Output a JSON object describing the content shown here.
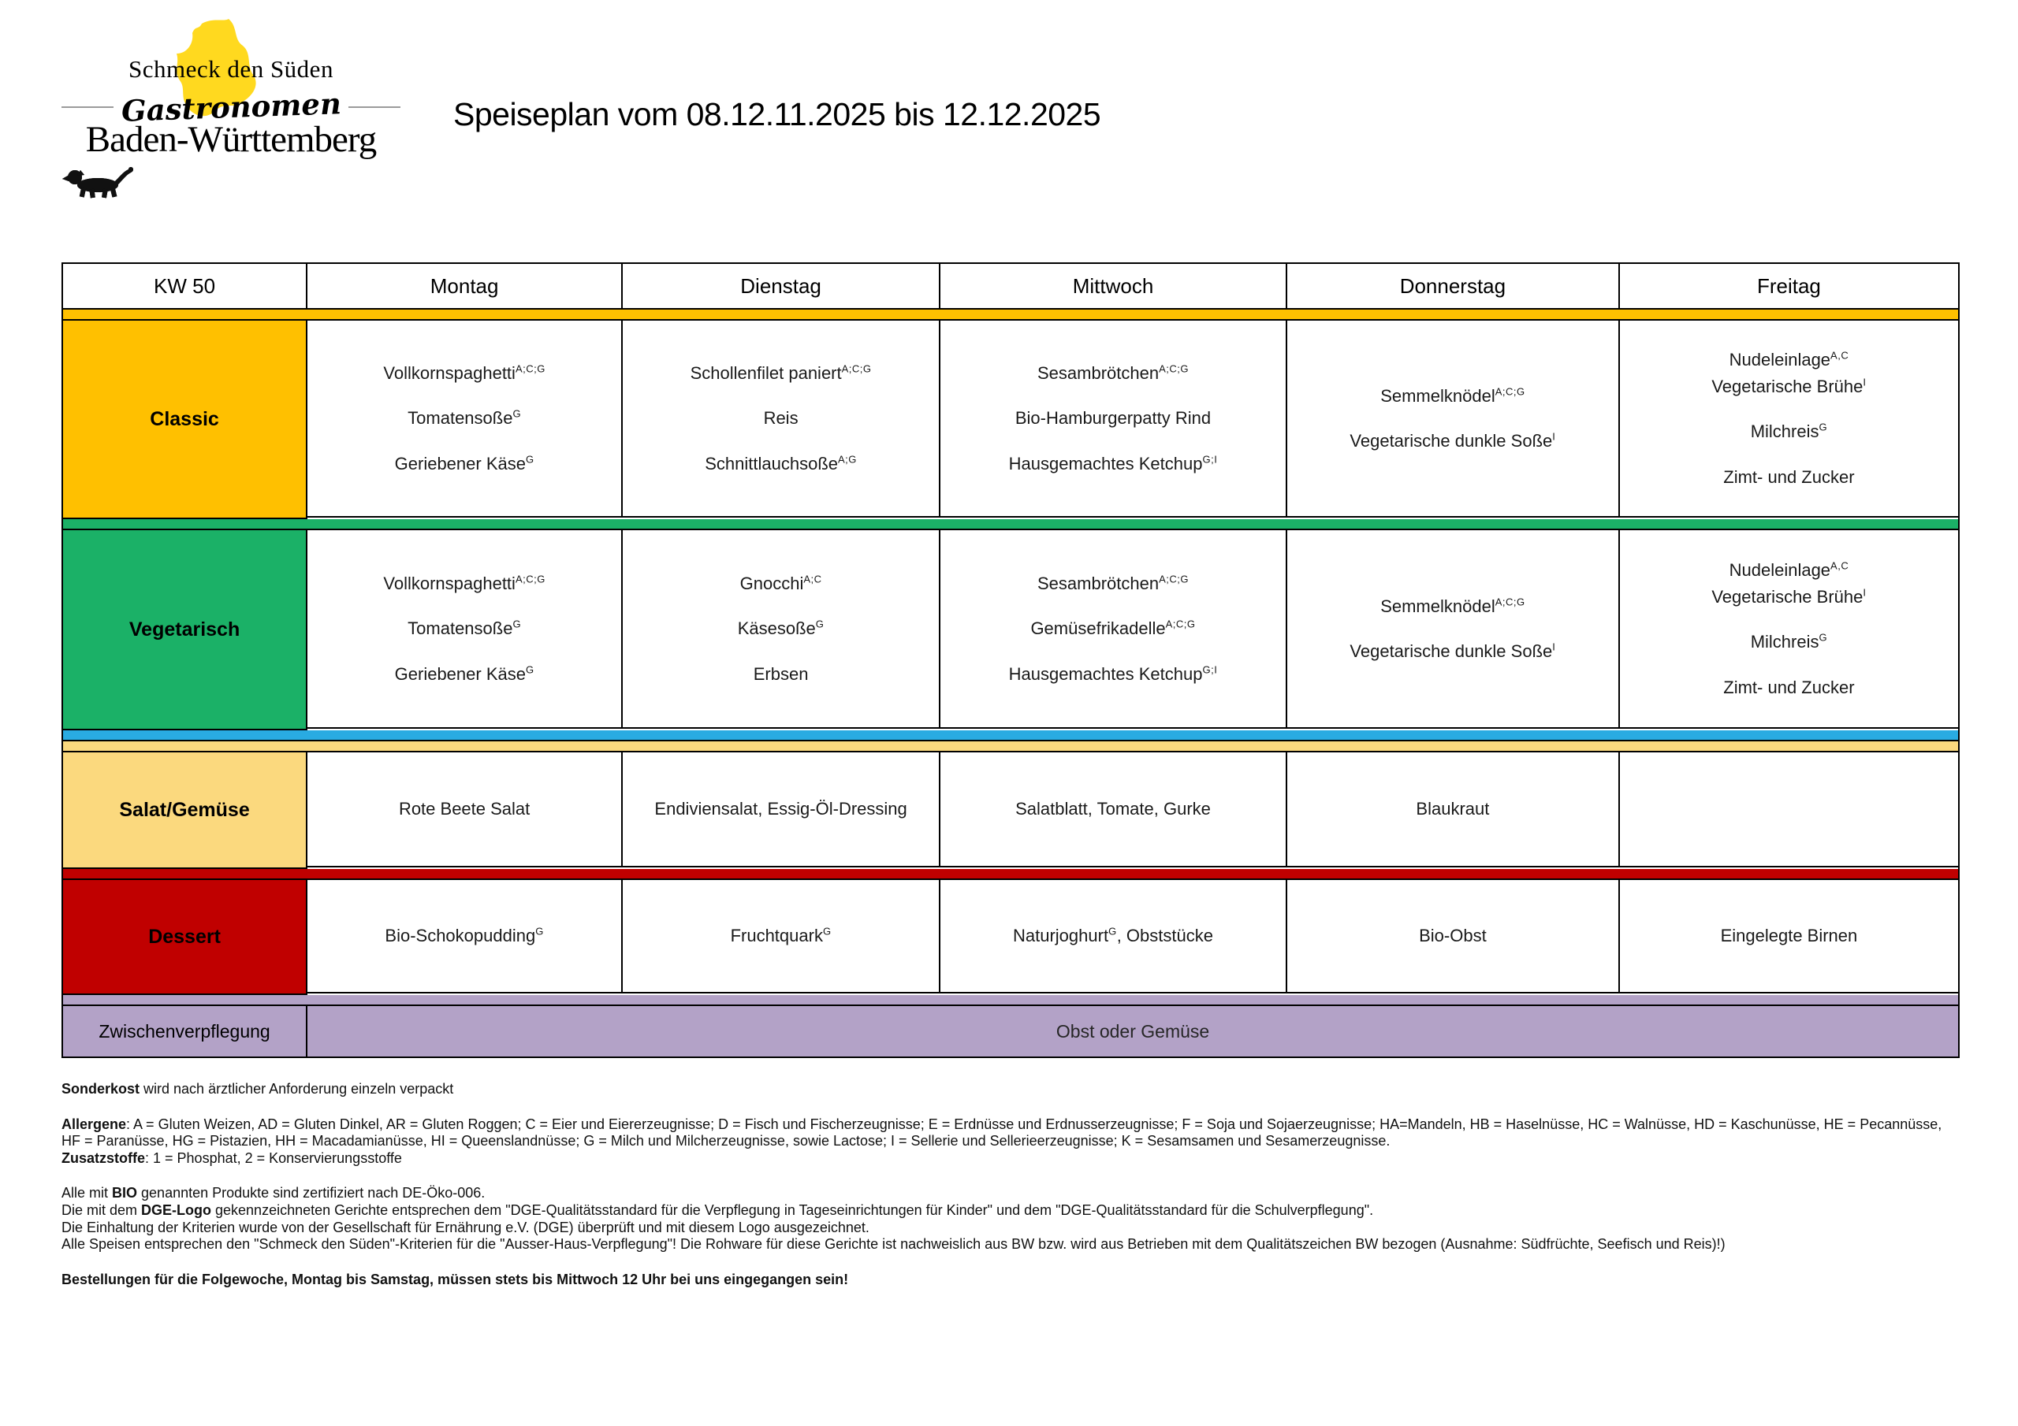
{
  "logo": {
    "line1": "Schmeck den Süden",
    "line2": "Gastronomen",
    "line3": "Baden-Württemberg",
    "state_shape_color": "#FFD91F"
  },
  "title": "Speiseplan vom 08.12.11.2025 bis 12.12.2025",
  "table": {
    "week_label": "KW 50",
    "day_headers": [
      "Montag",
      "Dienstag",
      "Mittwoch",
      "Donnerstag",
      "Freitag"
    ],
    "rows": [
      {
        "key": "classic",
        "label": "Classic",
        "color": "#FFC000",
        "bands": [
          "#FFC000"
        ],
        "cells": [
          [
            [
              {
                "t": "Vollkornspaghetti",
                "s": "A;C;G"
              }
            ],
            [
              {
                "t": "Tomatensoße",
                "s": "G"
              }
            ],
            [
              {
                "t": "Geriebener Käse",
                "s": "G"
              }
            ]
          ],
          [
            [
              {
                "t": "Schollenfilet paniert",
                "s": "A;C;G"
              }
            ],
            [
              {
                "t": "Reis"
              }
            ],
            [
              {
                "t": "Schnittlauchsoße",
                "s": "A;G"
              }
            ]
          ],
          [
            [
              {
                "t": "Sesambrötchen",
                "s": "A;C;G"
              }
            ],
            [
              {
                "t": "Bio-Hamburgerpatty Rind"
              }
            ],
            [
              {
                "t": "Hausgemachtes Ketchup",
                "s": "G;I"
              }
            ]
          ],
          [
            [
              {
                "t": "Semmelknödel",
                "s": "A;C;G"
              }
            ],
            [
              {
                "t": "Vegetarische dunkle Soße",
                "s": "I"
              }
            ]
          ],
          [
            [
              {
                "t": "Nudeleinlage",
                "s": "A,C"
              },
              {
                "t": "Vegetarische Brühe",
                "s": "I"
              }
            ],
            [
              {
                "t": "Milchreis",
                "s": "G"
              }
            ],
            [
              {
                "t": "Zimt- und Zucker"
              }
            ]
          ]
        ]
      },
      {
        "key": "vegetarisch",
        "label": "Vegetarisch",
        "color": "#1BB167",
        "bands": [
          "#1BB167"
        ],
        "cells": [
          [
            [
              {
                "t": "Vollkornspaghetti",
                "s": "A;C;G"
              }
            ],
            [
              {
                "t": "Tomatensoße",
                "s": "G"
              }
            ],
            [
              {
                "t": "Geriebener Käse",
                "s": "G"
              }
            ]
          ],
          [
            [
              {
                "t": "Gnocchi",
                "s": "A;C"
              }
            ],
            [
              {
                "t": "Käsesoße",
                "s": "G"
              }
            ],
            [
              {
                "t": "Erbsen"
              }
            ]
          ],
          [
            [
              {
                "t": "Sesambrötchen",
                "s": "A;C;G"
              }
            ],
            [
              {
                "t": "Gemüsefrikadelle",
                "s": "A;C;G"
              }
            ],
            [
              {
                "t": "Hausgemachtes Ketchup",
                "s": "G;I"
              }
            ]
          ],
          [
            [
              {
                "t": "Semmelknödel",
                "s": "A;C;G"
              }
            ],
            [
              {
                "t": "Vegetarische dunkle Soße",
                "s": "I"
              }
            ]
          ],
          [
            [
              {
                "t": "Nudeleinlage",
                "s": "A,C"
              },
              {
                "t": "Vegetarische Brühe",
                "s": "I"
              }
            ],
            [
              {
                "t": "Milchreis",
                "s": "G"
              }
            ],
            [
              {
                "t": "Zimt- und Zucker"
              }
            ]
          ]
        ]
      },
      {
        "key": "salat",
        "label": "Salat/Gemüse",
        "color": "#FBD97E",
        "bands": [
          "#29ABE2",
          "#FBD97E"
        ],
        "cells": [
          [
            [
              {
                "t": "Rote Beete Salat"
              }
            ]
          ],
          [
            [
              {
                "t": "Endiviensalat, Essig-Öl-Dressing"
              }
            ]
          ],
          [
            [
              {
                "t": "Salatblatt, Tomate, Gurke"
              }
            ]
          ],
          [
            [
              {
                "t": "Blaukraut"
              }
            ]
          ],
          []
        ]
      },
      {
        "key": "dessert",
        "label": "Dessert",
        "color": "#C00000",
        "bands": [
          "#C00000"
        ],
        "cells": [
          [
            [
              {
                "t": "Bio-Schokopudding",
                "s": "G"
              }
            ]
          ],
          [
            [
              {
                "t": "Fruchtquark",
                "s": "G"
              }
            ]
          ],
          [
            [
              {
                "t": "Naturjoghurt",
                "s": "G",
                "after": ", Obststücke"
              }
            ]
          ],
          [
            [
              {
                "t": "Bio-Obst"
              }
            ]
          ],
          [
            [
              {
                "t": "Eingelegte Birnen"
              }
            ]
          ]
        ]
      }
    ],
    "bottom_row": {
      "label": "Zwischenverpflegung",
      "value": "Obst oder Gemüse",
      "color": "#B3A2C7",
      "band": "#B3A2C7"
    }
  },
  "footer": {
    "lines": [
      {
        "gap": false,
        "seg": [
          {
            "b": true,
            "t": "Sonderkost"
          },
          {
            "b": false,
            "t": " wird nach ärztlicher Anforderung einzeln verpackt"
          }
        ]
      },
      {
        "gap": true,
        "seg": [
          {
            "b": true,
            "t": "Allergene"
          },
          {
            "b": false,
            "t": ": A = Gluten Weizen, AD = Gluten Dinkel, AR = Gluten Roggen; C = Eier und Eiererzeugnisse; D = Fisch und Fischerzeugnisse; E = Erdnüsse und Erdnusserzeugnisse; F = Soja und Sojaerzeugnisse; HA=Mandeln, HB = Haselnüsse, HC = Walnüsse, HD = Kaschunüsse, HE = Pecannüsse,"
          }
        ]
      },
      {
        "gap": false,
        "seg": [
          {
            "b": false,
            "t": "HF = Paranüsse, HG = Pistazien, HH = Macadamianüsse, HI = Queenslandnüsse; G = Milch und Milcherzeugnisse, sowie Lactose; I = Sellerie und Sellerieerzeugnisse; K = Sesamsamen und Sesamerzeugnisse."
          }
        ]
      },
      {
        "gap": false,
        "seg": [
          {
            "b": true,
            "t": "Zusatzstoffe"
          },
          {
            "b": false,
            "t": ": 1 = Phosphat, 2 = Konservierungsstoffe"
          }
        ]
      },
      {
        "gap": true,
        "seg": [
          {
            "b": false,
            "t": "Alle mit "
          },
          {
            "b": true,
            "t": "BIO"
          },
          {
            "b": false,
            "t": " genannten Produkte sind zertifiziert nach DE-Öko-006."
          }
        ]
      },
      {
        "gap": false,
        "seg": [
          {
            "b": false,
            "t": "Die mit dem "
          },
          {
            "b": true,
            "t": "DGE-Logo"
          },
          {
            "b": false,
            "t": " gekennzeichneten Gerichte entsprechen dem \"DGE-Qualitätsstandard für die Verpflegung in Tageseinrichtungen für Kinder\" und dem \"DGE-Qualitätsstandard für die Schulverpflegung\"."
          }
        ]
      },
      {
        "gap": false,
        "seg": [
          {
            "b": false,
            "t": "Die Einhaltung der Kriterien wurde von der Gesellschaft für Ernährung e.V. (DGE) überprüft und mit diesem Logo ausgezeichnet."
          }
        ]
      },
      {
        "gap": false,
        "seg": [
          {
            "b": false,
            "t": "Alle Speisen entsprechen den \"Schmeck den Süden\"-Kriterien für die \"Ausser-Haus-Verpflegung\"! Die Rohware für diese Gerichte ist nachweislich aus BW bzw. wird aus Betrieben mit dem Qualitätszeichen BW bezogen (Ausnahme: Südfrüchte, Seefisch und Reis)!)"
          }
        ]
      },
      {
        "gap": true,
        "seg": [
          {
            "b": true,
            "t": "Bestellungen für die Folgewoche, Montag bis Samstag, müssen stets bis Mittwoch 12 Uhr bei uns eingegangen sein!"
          }
        ]
      }
    ]
  }
}
